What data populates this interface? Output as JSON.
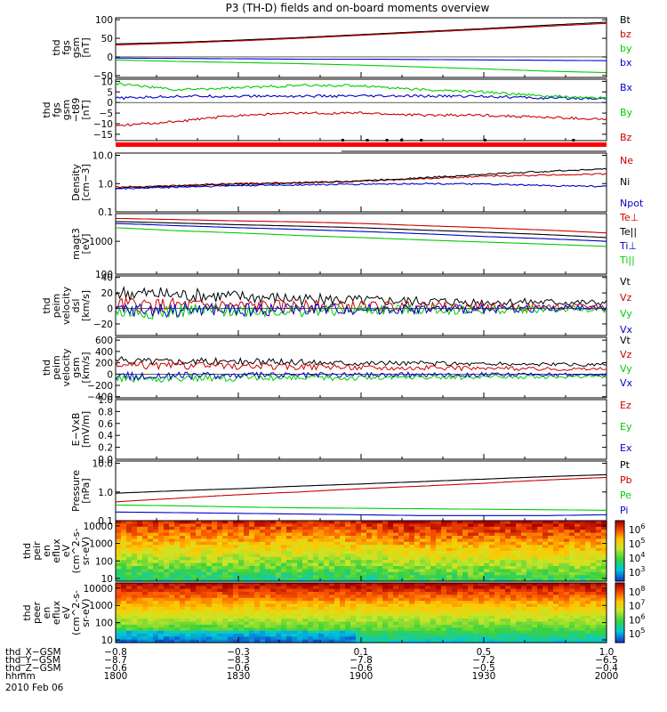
{
  "title": "P3 (TH-D) fields and on-board moments overview",
  "chart_data": [
    {
      "type": "line",
      "panel": "thd fgs gsm",
      "ylabel": [
        "thd",
        "fgs",
        "gsm",
        "[nT]"
      ],
      "yscale": "linear",
      "ylim": [
        -55,
        105
      ],
      "yticks": [
        "100",
        "50",
        "0",
        "−50"
      ],
      "x": [
        1800,
        1815,
        1830,
        1845,
        1900,
        1915,
        1930,
        1945,
        2000
      ],
      "series": [
        {
          "name": "Bt",
          "color": "#000000",
          "values": [
            35,
            39,
            45,
            52,
            60,
            68,
            76,
            85,
            93
          ]
        },
        {
          "name": "bz",
          "color": "#cc0000",
          "values": [
            32,
            37,
            43,
            50,
            58,
            66,
            74,
            82,
            90
          ]
        },
        {
          "name": "by",
          "color": "#00cc00",
          "values": [
            -8,
            -12,
            -15,
            -18,
            -22,
            -27,
            -32,
            -38,
            -42
          ]
        },
        {
          "name": "bx",
          "color": "#0000cc",
          "values": [
            -3,
            -4,
            -5,
            -6,
            -6,
            -7,
            -8,
            -9,
            -10
          ]
        }
      ]
    },
    {
      "type": "line",
      "panel": "thd fgs gsm-t89",
      "ylabel": [
        "thd",
        "fgs",
        "gsm",
        "−t89",
        "[nT]"
      ],
      "yscale": "linear",
      "ylim": [
        -18,
        11
      ],
      "yticks": [
        "10",
        "5",
        "0",
        "−5",
        "−10",
        "−15"
      ],
      "x": [
        1800,
        1815,
        1830,
        1845,
        1900,
        1915,
        1930,
        1945,
        2000
      ],
      "series": [
        {
          "name": "Bx",
          "color": "#0000cc",
          "values": [
            2,
            3,
            3,
            3,
            3,
            3,
            3,
            2,
            2
          ]
        },
        {
          "name": "By",
          "color": "#00cc00",
          "values": [
            9,
            6,
            7,
            8,
            8,
            6,
            5,
            3,
            2
          ]
        },
        {
          "name": "Bz",
          "color": "#cc0000",
          "values": [
            -11,
            -9,
            -6,
            -5,
            -5,
            -6,
            -6,
            -7,
            -8
          ]
        }
      ]
    },
    {
      "type": "line",
      "panel": "Density",
      "ylabel": [
        "Density",
        "[cm−3]"
      ],
      "yscale": "log",
      "ylim": [
        0.1,
        12
      ],
      "yticks": [
        "10.0",
        "1.0",
        "0.1"
      ],
      "x": [
        1800,
        1815,
        1830,
        1845,
        1900,
        1915,
        1930,
        1945,
        2000
      ],
      "series": [
        {
          "name": "Ne",
          "color": "#cc0000",
          "values": [
            0.75,
            0.85,
            1.0,
            1.1,
            1.2,
            1.5,
            1.8,
            2.0,
            2.2
          ]
        },
        {
          "name": "Ni",
          "color": "#000000",
          "values": [
            0.7,
            0.82,
            0.95,
            1.05,
            1.25,
            1.6,
            2.1,
            2.7,
            3.3
          ]
        },
        {
          "name": "Npot",
          "color": "#0000cc",
          "values": [
            0.65,
            0.75,
            0.85,
            0.9,
            0.95,
            1.0,
            0.95,
            0.85,
            0.8
          ]
        }
      ]
    },
    {
      "type": "line",
      "panel": "Temperature",
      "ylabel": [
        "magt3",
        "[eV]"
      ],
      "yscale": "log",
      "ylim": [
        100,
        7000
      ],
      "yticks": [
        "1000",
        "100"
      ],
      "x": [
        1800,
        1815,
        1830,
        1845,
        1900,
        1915,
        1930,
        1945,
        2000
      ],
      "series": [
        {
          "name": "Te⊥",
          "color": "#cc0000",
          "values": [
            5000,
            4600,
            4200,
            3900,
            3500,
            3000,
            2600,
            2200,
            1800
          ]
        },
        {
          "name": "Te||",
          "color": "#000000",
          "values": [
            4000,
            3600,
            3200,
            2900,
            2600,
            2200,
            1900,
            1600,
            1300
          ]
        },
        {
          "name": "Ti⊥",
          "color": "#0000cc",
          "values": [
            3500,
            3000,
            2600,
            2300,
            2000,
            1700,
            1400,
            1200,
            1000
          ]
        },
        {
          "name": "Ti||",
          "color": "#00cc00",
          "values": [
            2600,
            2100,
            1800,
            1500,
            1300,
            1100,
            950,
            820,
            700
          ]
        }
      ]
    },
    {
      "type": "line",
      "panel": "thd peim velocity dsl",
      "ylabel": [
        "thd",
        "peim",
        "velocity",
        "dsl",
        "[km/s]"
      ],
      "yscale": "linear",
      "ylim": [
        -35,
        42
      ],
      "yticks": [
        "40",
        "20",
        "0",
        "−20"
      ],
      "x": [
        1800,
        1815,
        1830,
        1845,
        1900,
        1915,
        1930,
        1945,
        2000
      ],
      "series": [
        {
          "name": "Vt",
          "color": "#000000",
          "values": [
            20,
            17,
            15,
            12,
            10,
            9,
            8,
            8,
            7
          ]
        },
        {
          "name": "Vz",
          "color": "#cc0000",
          "values": [
            5,
            4,
            3,
            3,
            3,
            2,
            2,
            2,
            2
          ]
        },
        {
          "name": "Vy",
          "color": "#00cc00",
          "values": [
            -5,
            -4,
            -3,
            -3,
            -2,
            -2,
            -2,
            -1,
            -1
          ]
        },
        {
          "name": "Vx",
          "color": "#0000cc",
          "values": [
            -3,
            -2,
            -2,
            -1,
            -1,
            -1,
            -1,
            0,
            0
          ]
        }
      ]
    },
    {
      "type": "line",
      "panel": "thd peim velocity gsm",
      "ylabel": [
        "thd",
        "peim",
        "velocity",
        "gsm",
        "[km/s]"
      ],
      "yscale": "linear",
      "ylim": [
        -420,
        650
      ],
      "yticks": [
        "600",
        "400",
        "200",
        "0",
        "−200",
        "−400"
      ],
      "x": [
        1800,
        1815,
        1830,
        1845,
        1900,
        1915,
        1930,
        1945,
        2000
      ],
      "series": [
        {
          "name": "Vt",
          "color": "#000000",
          "values": [
            240,
            230,
            220,
            210,
            200,
            190,
            180,
            170,
            160
          ]
        },
        {
          "name": "Vz",
          "color": "#cc0000",
          "values": [
            160,
            150,
            140,
            130,
            120,
            110,
            100,
            95,
            90
          ]
        },
        {
          "name": "Vy",
          "color": "#00cc00",
          "values": [
            -80,
            -80,
            -70,
            -70,
            -60,
            -60,
            -50,
            -50,
            -50
          ]
        },
        {
          "name": "Vx",
          "color": "#0000cc",
          "values": [
            -40,
            -30,
            -20,
            -20,
            -10,
            -10,
            -10,
            -10,
            -10
          ]
        }
      ]
    },
    {
      "type": "line",
      "panel": "E−VxB",
      "ylabel": [
        "E−VxB",
        "[mV/m]"
      ],
      "yscale": "linear",
      "ylim": [
        0,
        1
      ],
      "yticks": [
        "1.0",
        "0.8",
        "0.6",
        "0.4",
        "0.2",
        "0.0"
      ],
      "series": [
        {
          "name": "Ez",
          "color": "#cc0000",
          "values": []
        },
        {
          "name": "Ey",
          "color": "#00cc00",
          "values": []
        },
        {
          "name": "Ex",
          "color": "#0000cc",
          "values": []
        }
      ]
    },
    {
      "type": "line",
      "panel": "Pressure",
      "ylabel": [
        "Pressure",
        "[nPa]"
      ],
      "yscale": "log",
      "ylim": [
        0.1,
        12
      ],
      "yticks": [
        "10.0",
        "1.0",
        "0.1"
      ],
      "x": [
        1800,
        1815,
        1830,
        1845,
        1900,
        1915,
        1930,
        1945,
        2000
      ],
      "series": [
        {
          "name": "Pt",
          "color": "#000000",
          "values": [
            0.9,
            1.1,
            1.3,
            1.6,
            1.9,
            2.3,
            2.8,
            3.4,
            4.0
          ]
        },
        {
          "name": "Pb",
          "color": "#cc0000",
          "values": [
            0.45,
            0.6,
            0.8,
            1.0,
            1.3,
            1.6,
            2.0,
            2.6,
            3.2
          ]
        },
        {
          "name": "Pe",
          "color": "#00cc00",
          "values": [
            0.35,
            0.33,
            0.3,
            0.28,
            0.27,
            0.26,
            0.25,
            0.24,
            0.23
          ]
        },
        {
          "name": "Pi",
          "color": "#0000cc",
          "values": [
            0.2,
            0.19,
            0.18,
            0.17,
            0.16,
            0.15,
            0.15,
            0.15,
            0.16
          ]
        }
      ]
    },
    {
      "type": "heatmap",
      "panel": "thd peir en eflux",
      "ylabel": [
        "thd",
        "peir",
        "en",
        "eflux",
        "eV",
        "(cm^2-s-",
        "sr-eV)"
      ],
      "yscale": "log",
      "yticks": [
        "10000",
        "1000",
        "100",
        "10"
      ],
      "colorbar": {
        "scale": "log",
        "range": [
          300,
          5000000
        ],
        "ticks": [
          "10^6",
          "10^5",
          "10^4",
          "10^3"
        ]
      }
    },
    {
      "type": "heatmap",
      "panel": "thd peer en eflux",
      "ylabel": [
        "thd",
        "peer",
        "en",
        "eflux",
        "eV",
        "(cm^2-s-",
        "sr-eV)"
      ],
      "yscale": "log",
      "yticks": [
        "10000",
        "1000",
        "100",
        "10"
      ],
      "colorbar": {
        "scale": "log",
        "range": [
          30000,
          500000000
        ],
        "ticks": [
          "10^8",
          "10^7",
          "10^6",
          "10^5"
        ]
      }
    }
  ],
  "xaxis": {
    "rows": [
      {
        "label": "thd_X−GSM",
        "values": [
          "−0.8",
          "−0.3",
          "0.1",
          "0.5",
          "1.0"
        ]
      },
      {
        "label": "thd_Y−GSM",
        "values": [
          "−8.7",
          "−8.3",
          "−7.8",
          "−7.2",
          "−6.5"
        ]
      },
      {
        "label": "thd_Z−GSM",
        "values": [
          "−0.6",
          "−0.6",
          "−0.6",
          "−0.5",
          "−0.4"
        ]
      },
      {
        "label": "hhmm",
        "values": [
          "1800",
          "1830",
          "1900",
          "1930",
          "2000"
        ]
      }
    ],
    "date": "2010 Feb 06"
  },
  "colors": {
    "black": "#000000",
    "red": "#cc0000",
    "green": "#00cc00",
    "blue": "#0000cc",
    "mode_bar": "#ff0000"
  }
}
